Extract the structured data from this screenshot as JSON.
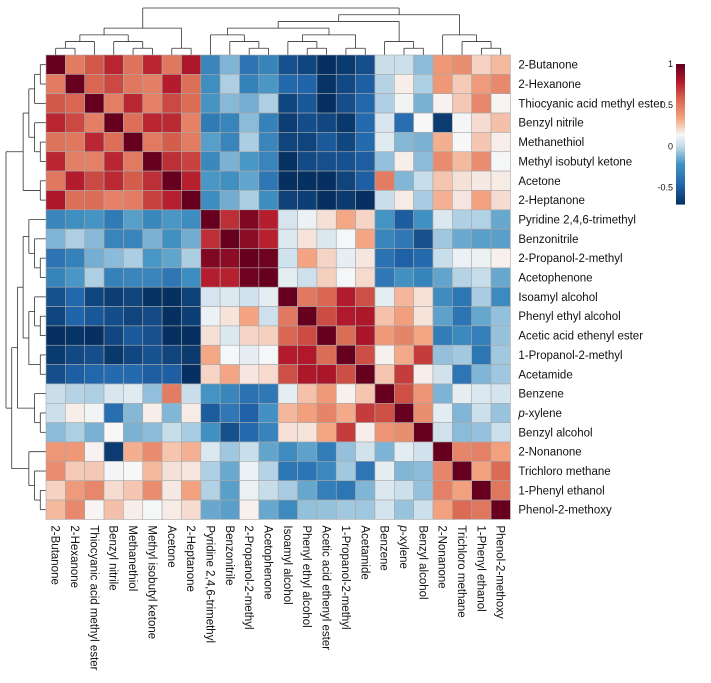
{
  "chart_data": {
    "type": "heatmap",
    "title": "",
    "xlabel": "",
    "ylabel": "",
    "labels": [
      "2-Butanone",
      "2-Hexanone",
      "Thiocyanic acid methyl ester",
      "Benzyl nitrile",
      "Methanethiol",
      "Methyl isobutyl ketone",
      "Acetone",
      "2-Heptanone",
      "Pyridine 2,4,6-trimethyl",
      "Benzonitrile",
      "2-Propanol-2-methyl",
      "Acetophenone",
      "Isoamyl alcohol",
      "Phenyl ethyl alcohol",
      "Acetic acid ethenyl ester",
      "1-Propanol-2-methyl",
      "Acetamide",
      "Benzene",
      "p-xylene",
      "Benzyl alcohol",
      "2-Nonanone",
      "Trichloro methane",
      "1-Phenyl ethanol",
      "Phenol-2-methoxy"
    ],
    "colorbar": {
      "ticks": [
        1,
        0.5,
        0,
        -0.5
      ],
      "tick_labels": [
        "1",
        "0.5",
        "0",
        "-0.5"
      ],
      "range": [
        -0.7,
        1
      ],
      "colors": {
        "low": "#053061",
        "mid_low": "#4393c3",
        "mid": "#f7f7f7",
        "mid_high": "#f4a582",
        "high": "#67001f"
      }
    },
    "cluster_groups": [
      {
        "members": [
          0,
          7
        ],
        "intra": 0.65
      },
      {
        "members": [
          8,
          11
        ],
        "intra": 0.9
      },
      {
        "members": [
          12,
          16
        ],
        "intra": 0.65
      },
      {
        "members": [
          17,
          19
        ],
        "intra": 0.55
      },
      {
        "members": [
          20,
          23
        ],
        "intra": 0.45
      }
    ],
    "group_correlations": [
      [
        null,
        -0.2,
        -0.6,
        0.05,
        0.3
      ],
      [
        -0.2,
        null,
        0.2,
        -0.35,
        0.0
      ],
      [
        -0.6,
        0.2,
        null,
        0.3,
        -0.2
      ],
      [
        0.05,
        -0.35,
        0.3,
        null,
        0.0
      ],
      [
        0.3,
        0.0,
        -0.2,
        0.0,
        null
      ]
    ],
    "value_overrides": [
      {
        "row": 3,
        "col": 20,
        "value": -0.65
      },
      {
        "row": 6,
        "col": 17,
        "value": 0.5
      },
      {
        "row": 6,
        "col": 18,
        "value": -0.1
      },
      {
        "row": 15,
        "col": 19,
        "value": 0.7
      },
      {
        "row": 16,
        "col": 18,
        "value": 0.7
      },
      {
        "row": 12,
        "col": 17,
        "value": 0.1
      },
      {
        "row": 16,
        "col": 20,
        "value": 0.05
      },
      {
        "row": 18,
        "col": 3,
        "value": -0.4
      },
      {
        "row": 19,
        "col": 9,
        "value": -0.55
      }
    ]
  }
}
